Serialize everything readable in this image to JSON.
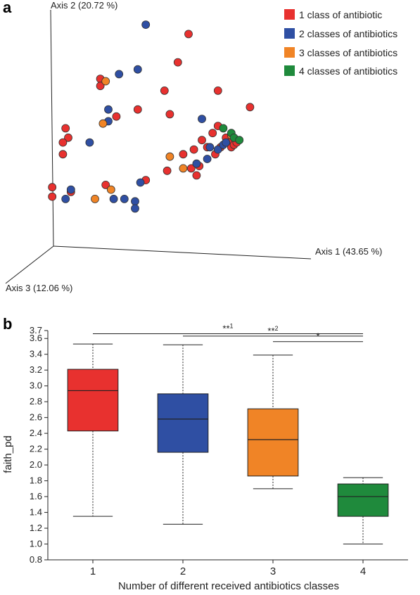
{
  "panel_a": {
    "label": "a",
    "axis1_label": "Axis 1 (43.65 %)",
    "axis2_label": "Axis 2 (20.72 %)",
    "axis3_label": "Axis 3 (12.06 %)",
    "legend": [
      {
        "label": "1 class of antibiotic",
        "color": "#e8312f"
      },
      {
        "label": "2 classes of antibiotics",
        "color": "#2f4fa3"
      },
      {
        "label": "3 classes of antibiotics",
        "color": "#f08426"
      },
      {
        "label": "4 classes of antibiotics",
        "color": "#1f8a3c"
      }
    ]
  },
  "panel_b": {
    "label": "b"
  },
  "chart_data": [
    {
      "type": "scatter",
      "title": "",
      "projection": "3d-pcoa",
      "axes": [
        "Axis 1 (43.65 %)",
        "Axis 2 (20.72 %)",
        "Axis 3 (12.06 %)"
      ],
      "series": [
        {
          "name": "1 class of antibiotic",
          "color": "#e8312f",
          "points": [
            [
              0.6,
              0.93
            ],
            [
              0.56,
              0.81
            ],
            [
              0.27,
              0.74
            ],
            [
              0.27,
              0.71
            ],
            [
              0.51,
              0.69
            ],
            [
              0.83,
              0.62
            ],
            [
              0.71,
              0.69
            ],
            [
              0.41,
              0.61
            ],
            [
              0.53,
              0.59
            ],
            [
              0.14,
              0.53
            ],
            [
              0.15,
              0.49
            ],
            [
              0.13,
              0.42
            ],
            [
              0.13,
              0.47
            ],
            [
              0.09,
              0.28
            ],
            [
              0.09,
              0.24
            ],
            [
              0.16,
              0.26
            ],
            [
              0.44,
              0.31
            ],
            [
              0.52,
              0.35
            ],
            [
              0.61,
              0.36
            ],
            [
              0.63,
              0.33
            ],
            [
              0.64,
              0.37
            ],
            [
              0.65,
              0.48
            ],
            [
              0.67,
              0.45
            ],
            [
              0.69,
              0.51
            ],
            [
              0.71,
              0.54
            ],
            [
              0.72,
              0.45
            ],
            [
              0.74,
              0.49
            ],
            [
              0.75,
              0.47
            ],
            [
              0.76,
              0.45
            ],
            [
              0.77,
              0.46
            ],
            [
              0.78,
              0.47
            ],
            [
              0.58,
              0.42
            ],
            [
              0.62,
              0.44
            ],
            [
              0.7,
              0.42
            ],
            [
              0.29,
              0.29
            ],
            [
              0.33,
              0.58
            ]
          ]
        },
        {
          "name": "2 classes of antibiotics",
          "color": "#2f4fa3",
          "points": [
            [
              0.44,
              0.97
            ],
            [
              0.34,
              0.76
            ],
            [
              0.41,
              0.78
            ],
            [
              0.3,
              0.61
            ],
            [
              0.3,
              0.56
            ],
            [
              0.65,
              0.57
            ],
            [
              0.23,
              0.47
            ],
            [
              0.16,
              0.27
            ],
            [
              0.14,
              0.23
            ],
            [
              0.32,
              0.23
            ],
            [
              0.36,
              0.23
            ],
            [
              0.4,
              0.22
            ],
            [
              0.4,
              0.19
            ],
            [
              0.42,
              0.3
            ],
            [
              0.63,
              0.38
            ],
            [
              0.67,
              0.4
            ],
            [
              0.68,
              0.45
            ],
            [
              0.71,
              0.44
            ],
            [
              0.73,
              0.46
            ],
            [
              0.74,
              0.47
            ]
          ]
        },
        {
          "name": "3 classes of antibiotics",
          "color": "#f08426",
          "points": [
            [
              0.29,
              0.73
            ],
            [
              0.28,
              0.55
            ],
            [
              0.31,
              0.27
            ],
            [
              0.25,
              0.23
            ],
            [
              0.53,
              0.41
            ],
            [
              0.58,
              0.36
            ],
            [
              0.76,
              0.5
            ]
          ]
        },
        {
          "name": "4 classes of antibiotics",
          "color": "#1f8a3c",
          "points": [
            [
              0.73,
              0.53
            ],
            [
              0.76,
              0.51
            ],
            [
              0.77,
              0.49
            ],
            [
              0.79,
              0.48
            ]
          ]
        }
      ]
    },
    {
      "type": "box",
      "title": "",
      "xlabel": "Number of different received antibiotics classes",
      "ylabel": "faith_pd",
      "ylim": [
        0.8,
        3.7
      ],
      "yticks": [
        "0.8",
        "1.0",
        "1.2",
        "1.4",
        "1.6",
        "1.8",
        "2.0",
        "2.2",
        "2.4",
        "2.6",
        "2.8",
        "3.0",
        "3.2",
        "3.4",
        "3.6",
        "3.7"
      ],
      "categories": [
        "1",
        "2",
        "3",
        "4"
      ],
      "boxes": [
        {
          "category": "1",
          "color": "#e8312f",
          "min": 1.35,
          "q1": 2.43,
          "median": 2.94,
          "q3": 3.21,
          "max": 3.53
        },
        {
          "category": "2",
          "color": "#2f4fa3",
          "min": 1.25,
          "q1": 2.16,
          "median": 2.58,
          "q3": 2.9,
          "max": 3.52
        },
        {
          "category": "3",
          "color": "#f08426",
          "min": 1.7,
          "q1": 1.86,
          "median": 2.32,
          "q3": 2.71,
          "max": 3.39
        },
        {
          "category": "4",
          "color": "#1f8a3c",
          "min": 1.0,
          "q1": 1.35,
          "median": 1.6,
          "q3": 1.76,
          "max": 1.84
        }
      ],
      "significance": [
        {
          "from": "1",
          "to": "4",
          "label": "**",
          "superscript": "1",
          "y": 3.66
        },
        {
          "from": "2",
          "to": "4",
          "label": "**",
          "superscript": "2",
          "y": 3.63
        },
        {
          "from": "3",
          "to": "4",
          "label": "*",
          "superscript": "",
          "y": 3.56
        }
      ]
    }
  ]
}
